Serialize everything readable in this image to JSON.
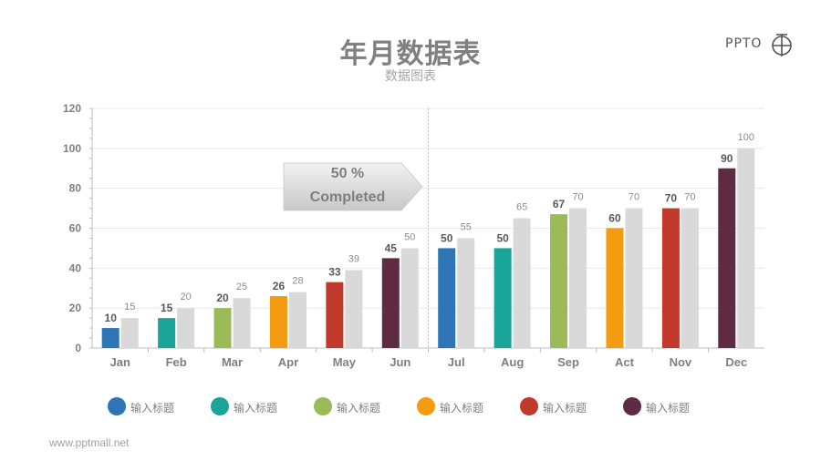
{
  "header": {
    "title": "年月数据表",
    "subtitle": "数据图表"
  },
  "logo": {
    "text": "PPTO"
  },
  "footer": {
    "url": "www.pptmall.net"
  },
  "callout": {
    "line1": "50 %",
    "line2": "Completed"
  },
  "colors": {
    "series": [
      "#2e75b6",
      "#1aa59a",
      "#9bbb59",
      "#f39c12",
      "#c0392b",
      "#5e2b42"
    ],
    "target": "#d9d9d9",
    "axis": "#bfbfbf",
    "grid": "#e8e8e8"
  },
  "legend": [
    {
      "label": "输入标题",
      "color": "#2e75b6"
    },
    {
      "label": "输入标题",
      "color": "#1aa59a"
    },
    {
      "label": "输入标题",
      "color": "#9bbb59"
    },
    {
      "label": "输入标题",
      "color": "#f39c12"
    },
    {
      "label": "输入标题",
      "color": "#c0392b"
    },
    {
      "label": "输入标题",
      "color": "#5e2b42"
    }
  ],
  "chart_data": {
    "type": "bar",
    "categories": [
      "Jan",
      "Feb",
      "Mar",
      "Apr",
      "May",
      "Jun",
      "Jul",
      "Aug",
      "Sep",
      "Act",
      "Nov",
      "Dec"
    ],
    "series": [
      {
        "values": [
          10,
          15,
          20,
          26,
          33,
          45,
          50,
          50,
          67,
          60,
          70,
          90
        ],
        "colors": [
          "#2e75b6",
          "#1aa59a",
          "#9bbb59",
          "#f39c12",
          "#c0392b",
          "#5e2b42",
          "#2e75b6",
          "#1aa59a",
          "#9bbb59",
          "#f39c12",
          "#c0392b",
          "#5e2b42"
        ]
      },
      {
        "values": [
          15,
          20,
          25,
          28,
          39,
          50,
          55,
          65,
          70,
          70,
          70,
          100
        ],
        "color": "#d9d9d9"
      }
    ],
    "yticks": [
      0,
      20,
      40,
      60,
      80,
      100,
      120
    ],
    "ylim": [
      0,
      120
    ],
    "grid": true,
    "legend_position": "bottom",
    "annotation": "50 % Completed"
  }
}
